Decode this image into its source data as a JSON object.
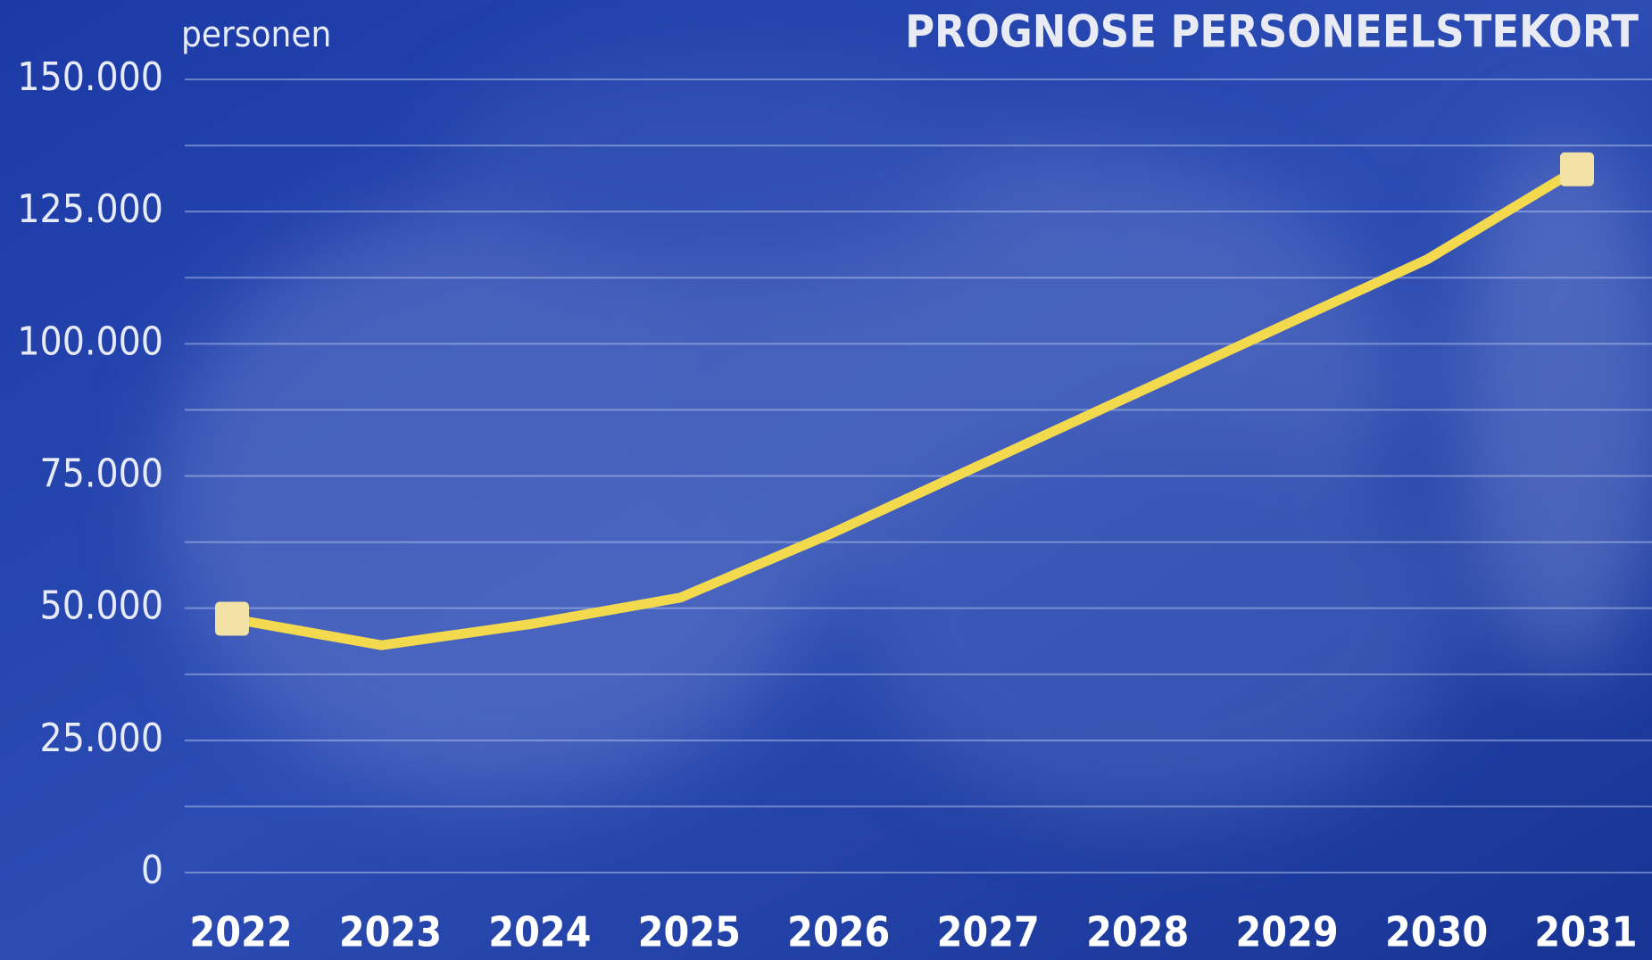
{
  "chart_data": {
    "type": "line",
    "title": "PROGNOSE PERSONEELSTEKORT",
    "y_label": "personen",
    "categories": [
      "2022",
      "2023",
      "2024",
      "2025",
      "2026",
      "2027",
      "2028",
      "2029",
      "2030",
      "2031"
    ],
    "series": [
      {
        "name": "personeelstekort",
        "color": "#f2d94e",
        "values": [
          48000,
          43000,
          47000,
          52000,
          64000,
          77000,
          90000,
          103000,
          116000,
          133000
        ]
      }
    ],
    "ylim": [
      0,
      150000
    ],
    "yticks": [
      0,
      {
        "value": 25000,
        "label": "25.000"
      },
      {
        "value": 50000,
        "label": "50.000"
      },
      {
        "value": 75000,
        "label": "75.000"
      },
      {
        "value": 100000,
        "label": "100.000"
      },
      {
        "value": 125000,
        "label": "125.000"
      },
      {
        "value": 150000,
        "label": "150.000"
      }
    ],
    "grid_lines": [
      0,
      12500,
      25000,
      37500,
      50000,
      62500,
      75000,
      87500,
      100000,
      112500,
      125000,
      137500,
      150000
    ],
    "marker_color": "#f3e2a6",
    "endpoint_markers": true,
    "grid": true
  }
}
